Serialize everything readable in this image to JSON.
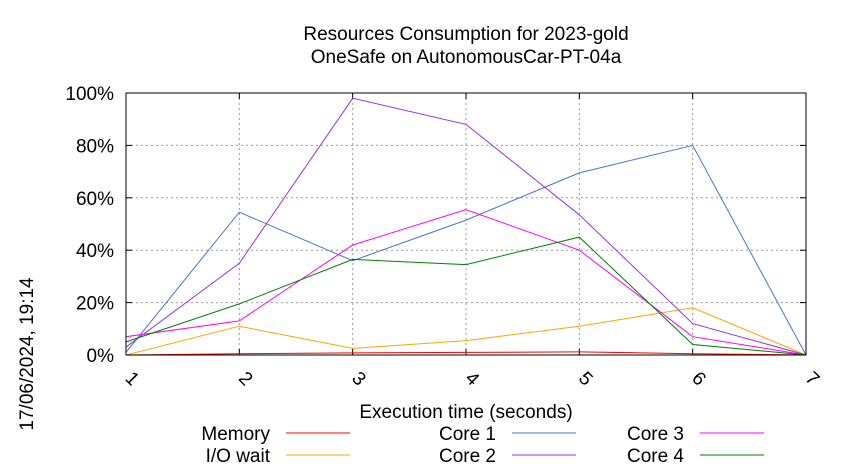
{
  "chart_data": {
    "type": "line",
    "title": "Resources Consumption for 2023-gold",
    "subtitle": "OneSafe on AutonomousCar-PT-04a",
    "xlabel": "Execution time (seconds)",
    "ylabel": "",
    "side_label": "17/06/2024, 19:14",
    "x": [
      1,
      2,
      3,
      4,
      5,
      6,
      7
    ],
    "xlim": [
      1,
      7
    ],
    "ylim": [
      0,
      100
    ],
    "x_ticks": [
      "1",
      "2",
      "3",
      "4",
      "5",
      "6",
      "7"
    ],
    "y_ticks": [
      "0%",
      "20%",
      "40%",
      "60%",
      "80%",
      "100%"
    ],
    "grid": true,
    "legend_position": "bottom",
    "series": [
      {
        "name": "Memory",
        "color": "#ff0000",
        "values": [
          0,
          0.5,
          0.8,
          1,
          1.2,
          0.5,
          0
        ]
      },
      {
        "name": "I/O wait",
        "color": "#ffa500",
        "values": [
          0,
          11,
          2.5,
          5.5,
          11,
          18,
          0
        ]
      },
      {
        "name": "Core 1",
        "color": "#4a76c8",
        "values": [
          1,
          54.5,
          36,
          51.5,
          69.5,
          80,
          0
        ]
      },
      {
        "name": "Core 2",
        "color": "#9b30e8",
        "values": [
          3,
          35,
          98,
          88,
          53.5,
          12,
          0
        ]
      },
      {
        "name": "Core 3",
        "color": "#ff00ff",
        "values": [
          7,
          13,
          42,
          55.5,
          40,
          7,
          0
        ]
      },
      {
        "name": "Core 4",
        "color": "#008000",
        "values": [
          5,
          19.5,
          36.5,
          34.5,
          45,
          4,
          0
        ]
      }
    ]
  }
}
